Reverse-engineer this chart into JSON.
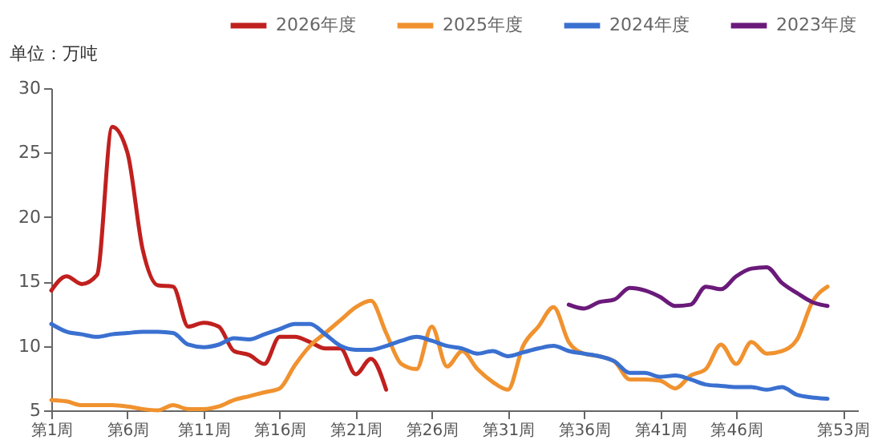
{
  "chart_data": {
    "type": "line",
    "annotations": [
      "单位：万吨"
    ],
    "categories": [
      "第1周",
      null,
      null,
      null,
      null,
      "第6周",
      null,
      null,
      null,
      null,
      "第11周",
      null,
      null,
      null,
      null,
      "第16周",
      null,
      null,
      null,
      null,
      "第21周",
      null,
      null,
      null,
      null,
      "第26周",
      null,
      null,
      null,
      null,
      "第31周",
      null,
      null,
      null,
      null,
      "第36周",
      null,
      null,
      null,
      null,
      "第41周",
      null,
      null,
      null,
      null,
      "第46周",
      null,
      null,
      null,
      null,
      null,
      null,
      "第53周"
    ],
    "ylim": [
      5,
      30
    ],
    "yticks": [
      5,
      10,
      15,
      20,
      25,
      30
    ],
    "grid": false,
    "legend": "top",
    "series": [
      {
        "name": "2026年度",
        "color": "#c0201e",
        "values": [
          14.3,
          15.4,
          14.8,
          15.5,
          27,
          25,
          17.5,
          14.7,
          14.6,
          11.5,
          11.8,
          11.5,
          9.6,
          9.3,
          8.6,
          10.7,
          10.7,
          10.3,
          9.8,
          9.8,
          7.8,
          9.0,
          6.6,
          null,
          null,
          null,
          null,
          null,
          null,
          null,
          null,
          null,
          null,
          null,
          null,
          null,
          null,
          null,
          null,
          null,
          null,
          null,
          null,
          null,
          null,
          null,
          null,
          null,
          null,
          null,
          null,
          null,
          null
        ]
      },
      {
        "name": "2025年度",
        "color": "#f0922f",
        "values": [
          5.8,
          5.7,
          5.4,
          5.4,
          5.4,
          5.3,
          5.1,
          5.0,
          5.4,
          5.1,
          5.1,
          5.3,
          5.8,
          6.1,
          6.4,
          6.7,
          8.5,
          10.0,
          11.0,
          12.0,
          13.0,
          13.5,
          11.0,
          8.6,
          8.2,
          11.5,
          8.4,
          9.6,
          8.2,
          7.2,
          6.6,
          10.0,
          11.5,
          13.0,
          10.3,
          9.4,
          9.2,
          8.8,
          7.4,
          7.4,
          7.3,
          6.7,
          7.7,
          8.2,
          10.1,
          8.6,
          10.3,
          9.4,
          9.6,
          10.5,
          13.4,
          14.6,
          null
        ]
      },
      {
        "name": "2024年度",
        "color": "#3a70d0",
        "values": [
          11.7,
          11.1,
          10.9,
          10.7,
          10.9,
          11.0,
          11.1,
          11.1,
          11.0,
          10.1,
          9.9,
          10.1,
          10.6,
          10.5,
          10.9,
          11.3,
          11.7,
          11.7,
          10.9,
          10.0,
          9.7,
          9.7,
          10.0,
          10.4,
          10.7,
          10.4,
          10.0,
          9.8,
          9.4,
          9.6,
          9.2,
          9.5,
          9.8,
          10.0,
          9.6,
          9.4,
          9.2,
          8.8,
          7.9,
          7.9,
          7.6,
          7.7,
          7.4,
          7.0,
          6.9,
          6.8,
          6.8,
          6.6,
          6.8,
          6.2,
          6.0,
          5.9,
          null
        ]
      },
      {
        "name": "2023年度",
        "color": "#6a1a7a",
        "values": [
          null,
          null,
          null,
          null,
          null,
          null,
          null,
          null,
          null,
          null,
          null,
          null,
          null,
          null,
          null,
          null,
          null,
          null,
          null,
          null,
          null,
          null,
          null,
          null,
          null,
          null,
          null,
          null,
          null,
          null,
          null,
          null,
          null,
          null,
          13.2,
          12.9,
          13.4,
          13.6,
          14.5,
          14.3,
          13.8,
          13.1,
          13.2,
          14.6,
          14.4,
          15.4,
          16.0,
          16.1,
          14.9,
          14.1,
          13.4,
          13.1,
          null
        ]
      }
    ]
  }
}
